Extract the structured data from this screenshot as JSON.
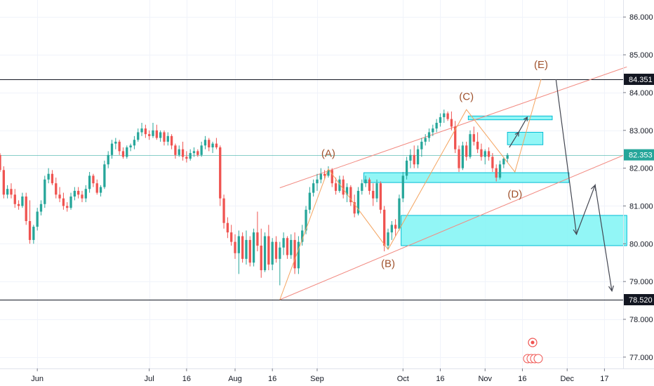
{
  "chart_data": {
    "type": "candlestick",
    "y_ticks": [
      {
        "v": 86,
        "label": "86.000"
      },
      {
        "v": 85,
        "label": "85.000"
      },
      {
        "v": 84,
        "label": "84.000"
      },
      {
        "v": 83,
        "label": "83.000"
      },
      {
        "v": 82,
        "label": "82.000"
      },
      {
        "v": 81,
        "label": "81.000"
      },
      {
        "v": 80,
        "label": "80.000"
      },
      {
        "v": 79,
        "label": "79.000"
      },
      {
        "v": 78,
        "label": "78.000"
      },
      {
        "v": 77,
        "label": "77.000"
      }
    ],
    "x_ticks": [
      {
        "i": 10,
        "label": "Jun"
      },
      {
        "i": 40,
        "label": "Jul"
      },
      {
        "i": 50,
        "label": "16"
      },
      {
        "i": 63,
        "label": "Aug"
      },
      {
        "i": 73,
        "label": "16"
      },
      {
        "i": 85,
        "label": "Sep"
      },
      {
        "i": 108,
        "label": "Oct"
      },
      {
        "i": 118,
        "label": "16"
      },
      {
        "i": 130,
        "label": "Nov"
      },
      {
        "i": 140,
        "label": "16"
      },
      {
        "i": 152,
        "label": "Dec"
      },
      {
        "i": 162,
        "label": "17"
      }
    ],
    "y_range": [
      76.7,
      86.45
    ],
    "x_range": [
      0,
      167
    ],
    "horizontal_levels": [
      {
        "value": 84.351,
        "label": "84.351",
        "color": "#131722"
      },
      {
        "value": 78.52,
        "label": "78.520",
        "color": "#131722"
      }
    ],
    "current_price": {
      "value": 82.353,
      "label": "82.353",
      "color": "#26a69a"
    },
    "colors": {
      "up": "#26a69a",
      "down": "#ef5350",
      "channel": "#f28b82",
      "zone_fill": "#7ff5f5",
      "zone_stroke": "#00bcd4",
      "wave_label": "#a0522d",
      "projection": "#434651"
    },
    "wave_labels": [
      {
        "text": "(A)",
        "i": 88,
        "v": 82.3
      },
      {
        "text": "(B)",
        "i": 104,
        "v": 79.38
      },
      {
        "text": "(C)",
        "i": 125,
        "v": 83.8
      },
      {
        "text": "(D)",
        "i": 138,
        "v": 81.22
      },
      {
        "text": "(E)",
        "i": 145,
        "v": 84.65
      }
    ],
    "wave_path": [
      [
        75,
        78.52
      ],
      [
        88,
        81.98
      ],
      [
        104,
        79.85
      ],
      [
        125,
        83.55
      ],
      [
        138,
        81.9
      ],
      [
        145,
        84.35
      ]
    ],
    "channel_upper": [
      [
        75,
        81.48
      ],
      [
        168,
        84.68
      ]
    ],
    "channel_lower": [
      [
        75,
        78.52
      ],
      [
        168,
        82.38
      ]
    ],
    "zones": [
      {
        "i0": 97.5,
        "i1": 152.5,
        "v0": 81.62,
        "v1": 81.88
      },
      {
        "i0": 107.5,
        "i1": 168,
        "v0": 79.95,
        "v1": 80.75
      },
      {
        "i0": 125.5,
        "i1": 148,
        "v0": 83.28,
        "v1": 83.38
      },
      {
        "i0": 136,
        "i1": 145.5,
        "v0": 82.62,
        "v1": 82.95
      }
    ],
    "projection_path": [
      [
        149,
        84.35
      ],
      [
        154.5,
        80.25
      ],
      [
        159.5,
        81.55
      ],
      [
        164,
        78.75
      ]
    ],
    "candles": [
      [
        0,
        82.35,
        82.4,
        81.9,
        81.95
      ],
      [
        1,
        81.95,
        82.05,
        81.2,
        81.3
      ],
      [
        2,
        81.3,
        81.55,
        81.2,
        81.45
      ],
      [
        3,
        81.45,
        81.6,
        81.2,
        81.3
      ],
      [
        4,
        81.3,
        81.45,
        80.95,
        81.05
      ],
      [
        5,
        81.05,
        81.15,
        80.9,
        81.0
      ],
      [
        6,
        81.0,
        81.35,
        80.95,
        81.25
      ],
      [
        7,
        81.25,
        81.35,
        80.5,
        80.6
      ],
      [
        8,
        80.6,
        81.15,
        80.0,
        80.1
      ],
      [
        9,
        80.1,
        80.5,
        80.0,
        80.45
      ],
      [
        10,
        80.45,
        80.95,
        80.35,
        80.85
      ],
      [
        11,
        80.85,
        81.15,
        80.75,
        81.05
      ],
      [
        12,
        81.05,
        81.8,
        80.95,
        81.7
      ],
      [
        13,
        81.7,
        82.0,
        81.6,
        81.85
      ],
      [
        14,
        81.85,
        81.95,
        81.55,
        81.6
      ],
      [
        15,
        81.6,
        81.75,
        81.2,
        81.3
      ],
      [
        16,
        81.3,
        81.5,
        81.1,
        81.2
      ],
      [
        17,
        81.2,
        81.35,
        80.9,
        81.0
      ],
      [
        18,
        81.0,
        81.1,
        80.85,
        80.95
      ],
      [
        19,
        80.95,
        81.35,
        80.9,
        81.25
      ],
      [
        20,
        81.25,
        81.5,
        81.15,
        81.4
      ],
      [
        21,
        81.4,
        81.5,
        81.2,
        81.3
      ],
      [
        22,
        81.3,
        81.4,
        81.1,
        81.2
      ],
      [
        23,
        81.2,
        81.55,
        81.1,
        81.45
      ],
      [
        24,
        81.45,
        81.9,
        81.35,
        81.8
      ],
      [
        25,
        81.8,
        81.85,
        81.5,
        81.6
      ],
      [
        26,
        81.6,
        81.7,
        81.3,
        81.35
      ],
      [
        27,
        81.35,
        81.55,
        81.25,
        81.5
      ],
      [
        28,
        81.5,
        82.2,
        81.45,
        82.1
      ],
      [
        29,
        82.1,
        82.45,
        82.0,
        82.35
      ],
      [
        30,
        82.35,
        82.75,
        82.25,
        82.65
      ],
      [
        31,
        82.65,
        82.8,
        82.5,
        82.7
      ],
      [
        32,
        82.7,
        82.75,
        82.35,
        82.45
      ],
      [
        33,
        82.45,
        82.55,
        82.25,
        82.3
      ],
      [
        34,
        82.3,
        82.6,
        82.25,
        82.55
      ],
      [
        35,
        82.55,
        82.65,
        82.45,
        82.6
      ],
      [
        36,
        82.6,
        82.85,
        82.5,
        82.75
      ],
      [
        37,
        82.75,
        83.05,
        82.7,
        82.95
      ],
      [
        38,
        82.95,
        83.2,
        82.85,
        83.05
      ],
      [
        39,
        83.05,
        83.15,
        82.8,
        82.9
      ],
      [
        40,
        82.9,
        83.0,
        82.75,
        82.85
      ],
      [
        41,
        82.85,
        83.2,
        82.8,
        83.0
      ],
      [
        42,
        83.0,
        83.15,
        82.75,
        82.8
      ],
      [
        43,
        82.8,
        83.0,
        82.7,
        82.95
      ],
      [
        44,
        82.95,
        83.0,
        82.6,
        82.7
      ],
      [
        45,
        82.7,
        82.95,
        82.6,
        82.85
      ],
      [
        46,
        82.85,
        82.9,
        82.5,
        82.6
      ],
      [
        47,
        82.6,
        82.65,
        82.25,
        82.35
      ],
      [
        48,
        82.35,
        82.6,
        82.3,
        82.5
      ],
      [
        49,
        82.5,
        82.7,
        82.2,
        82.3
      ],
      [
        50,
        82.3,
        82.45,
        82.15,
        82.25
      ],
      [
        51,
        82.25,
        82.5,
        82.2,
        82.4
      ],
      [
        52,
        82.4,
        82.55,
        82.3,
        82.45
      ],
      [
        53,
        82.45,
        82.5,
        82.3,
        82.35
      ],
      [
        54,
        82.35,
        82.7,
        82.3,
        82.6
      ],
      [
        55,
        82.6,
        82.85,
        82.5,
        82.75
      ],
      [
        56,
        82.75,
        82.8,
        82.45,
        82.55
      ],
      [
        57,
        82.55,
        82.7,
        82.4,
        82.65
      ],
      [
        58,
        82.65,
        82.8,
        82.5,
        82.55
      ],
      [
        59,
        82.55,
        82.6,
        81.0,
        81.2
      ],
      [
        60,
        81.2,
        81.3,
        80.4,
        80.55
      ],
      [
        61,
        80.55,
        80.7,
        80.15,
        80.3
      ],
      [
        62,
        80.3,
        80.5,
        79.95,
        80.05
      ],
      [
        63,
        80.05,
        80.25,
        79.6,
        79.75
      ],
      [
        64,
        79.75,
        80.35,
        79.2,
        80.2
      ],
      [
        65,
        80.2,
        80.3,
        79.5,
        79.6
      ],
      [
        66,
        79.6,
        80.35,
        79.45,
        80.1
      ],
      [
        67,
        80.1,
        80.2,
        79.4,
        79.5
      ],
      [
        68,
        79.5,
        80.4,
        79.4,
        80.3
      ],
      [
        69,
        80.3,
        80.85,
        79.8,
        79.95
      ],
      [
        70,
        79.95,
        80.4,
        79.1,
        79.3
      ],
      [
        71,
        79.3,
        80.3,
        79.25,
        80.2
      ],
      [
        72,
        80.2,
        80.5,
        79.3,
        79.45
      ],
      [
        73,
        79.45,
        80.15,
        79.3,
        80.05
      ],
      [
        74,
        80.05,
        80.2,
        79.5,
        79.6
      ],
      [
        75,
        79.6,
        80.05,
        78.9,
        79.9
      ],
      [
        76,
        79.9,
        80.3,
        79.7,
        80.15
      ],
      [
        77,
        80.15,
        80.2,
        79.6,
        79.7
      ],
      [
        78,
        79.7,
        80.25,
        79.6,
        80.1
      ],
      [
        79,
        80.1,
        80.3,
        79.2,
        79.35
      ],
      [
        80,
        79.35,
        80.2,
        79.2,
        80.05
      ],
      [
        81,
        80.05,
        80.5,
        79.95,
        80.35
      ],
      [
        82,
        80.35,
        81.0,
        80.25,
        80.9
      ],
      [
        83,
        80.9,
        81.5,
        80.8,
        81.35
      ],
      [
        84,
        81.35,
        81.7,
        81.25,
        81.6
      ],
      [
        85,
        81.6,
        81.85,
        81.4,
        81.7
      ],
      [
        86,
        81.7,
        82.0,
        81.6,
        81.85
      ],
      [
        87,
        81.85,
        81.95,
        81.7,
        81.8
      ],
      [
        88,
        81.8,
        82.05,
        81.75,
        81.95
      ],
      [
        89,
        81.95,
        82.0,
        81.5,
        81.6
      ],
      [
        90,
        81.6,
        81.75,
        81.3,
        81.4
      ],
      [
        91,
        81.4,
        81.8,
        81.35,
        81.7
      ],
      [
        92,
        81.7,
        81.8,
        81.2,
        81.3
      ],
      [
        93,
        81.3,
        81.6,
        81.1,
        81.5
      ],
      [
        94,
        81.5,
        81.55,
        81.0,
        81.1
      ],
      [
        95,
        81.1,
        81.3,
        80.7,
        80.8
      ],
      [
        96,
        80.8,
        81.5,
        80.75,
        81.4
      ],
      [
        97,
        81.4,
        81.7,
        81.3,
        81.6
      ],
      [
        98,
        81.6,
        81.8,
        81.5,
        81.7
      ],
      [
        99,
        81.7,
        81.75,
        81.3,
        81.4
      ],
      [
        100,
        81.4,
        81.6,
        81.0,
        81.2
      ],
      [
        101,
        81.2,
        81.7,
        81.1,
        81.6
      ],
      [
        102,
        81.6,
        81.65,
        80.8,
        80.9
      ],
      [
        103,
        80.9,
        81.0,
        79.8,
        79.95
      ],
      [
        104,
        79.95,
        80.4,
        79.85,
        80.3
      ],
      [
        105,
        80.3,
        80.6,
        80.1,
        80.5
      ],
      [
        106,
        80.5,
        80.65,
        80.2,
        80.4
      ],
      [
        107,
        80.4,
        81.3,
        80.35,
        81.2
      ],
      [
        108,
        81.2,
        81.9,
        81.1,
        81.8
      ],
      [
        109,
        81.8,
        82.3,
        81.7,
        82.2
      ],
      [
        110,
        82.2,
        82.5,
        82.0,
        82.35
      ],
      [
        111,
        82.35,
        82.6,
        82.0,
        82.1
      ],
      [
        112,
        82.1,
        82.6,
        82.0,
        82.5
      ],
      [
        113,
        82.5,
        82.8,
        82.3,
        82.7
      ],
      [
        114,
        82.7,
        82.9,
        82.6,
        82.8
      ],
      [
        115,
        82.8,
        83.05,
        82.7,
        82.95
      ],
      [
        116,
        82.95,
        83.15,
        82.85,
        83.05
      ],
      [
        117,
        83.05,
        83.3,
        82.95,
        83.2
      ],
      [
        118,
        83.2,
        83.45,
        83.1,
        83.35
      ],
      [
        119,
        83.35,
        83.55,
        83.2,
        83.45
      ],
      [
        120,
        83.45,
        83.5,
        83.25,
        83.3
      ],
      [
        121,
        83.3,
        83.5,
        83.0,
        83.1
      ],
      [
        122,
        83.1,
        83.25,
        82.4,
        82.5
      ],
      [
        123,
        82.5,
        82.6,
        81.9,
        82.0
      ],
      [
        124,
        82.0,
        82.7,
        81.95,
        82.6
      ],
      [
        125,
        82.6,
        82.7,
        82.2,
        82.3
      ],
      [
        126,
        82.3,
        83.0,
        82.25,
        82.9
      ],
      [
        127,
        82.9,
        83.1,
        82.6,
        82.7
      ],
      [
        128,
        82.7,
        82.95,
        82.4,
        82.5
      ],
      [
        129,
        82.5,
        82.65,
        82.2,
        82.3
      ],
      [
        130,
        82.3,
        82.5,
        82.1,
        82.45
      ],
      [
        131,
        82.45,
        82.55,
        82.2,
        82.3
      ],
      [
        132,
        82.3,
        82.4,
        81.9,
        82.0
      ],
      [
        133,
        82.0,
        82.1,
        81.65,
        81.75
      ],
      [
        134,
        81.75,
        82.2,
        81.7,
        82.1
      ],
      [
        135,
        82.1,
        82.3,
        82.0,
        82.25
      ],
      [
        136,
        82.25,
        82.4,
        82.15,
        82.35
      ]
    ]
  }
}
